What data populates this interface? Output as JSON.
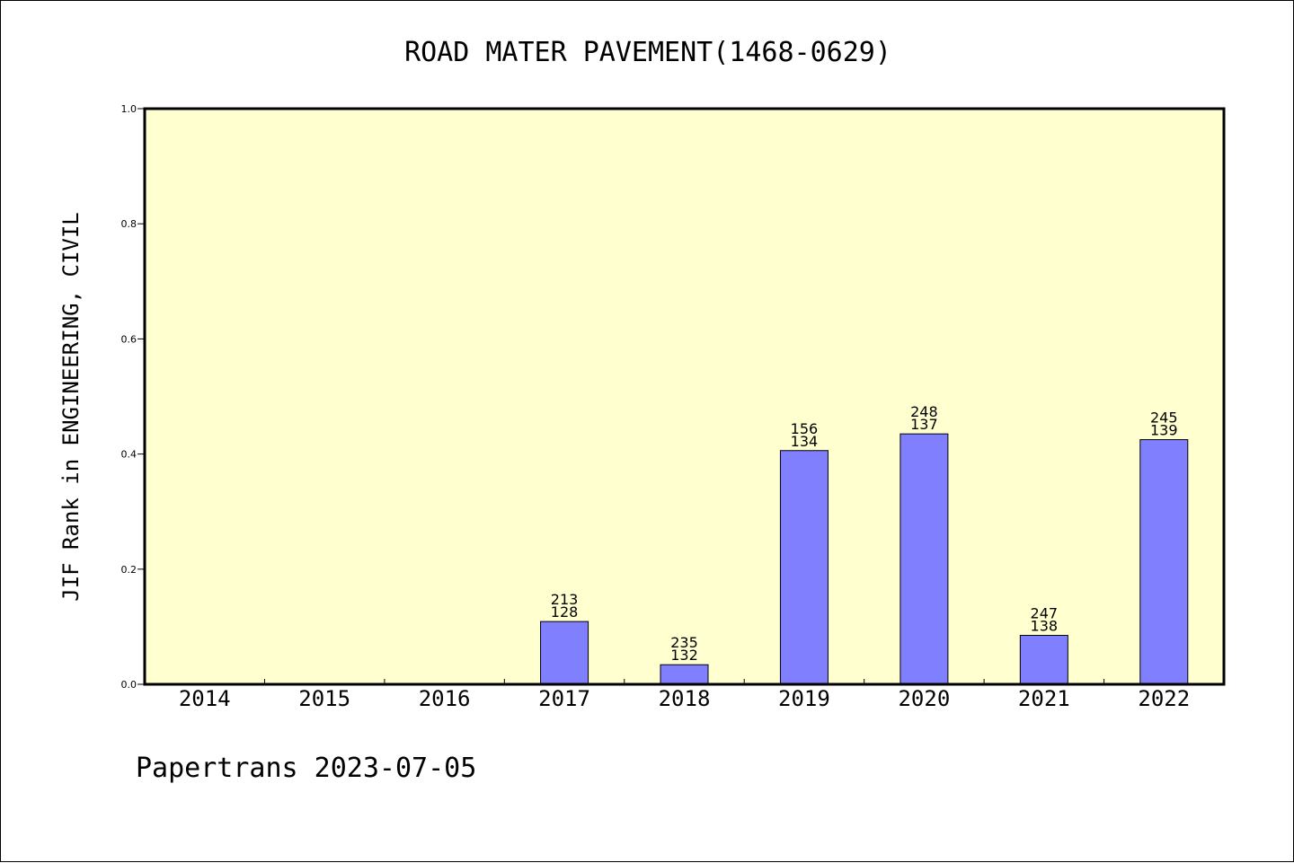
{
  "chart_data": {
    "type": "bar",
    "title": "ROAD MATER PAVEMENT(1468-0629)",
    "ylabel": "JIF Rank in ENGINEERING, CIVIL",
    "xlabel": "",
    "footer": "Papertrans 2023-07-05",
    "categories": [
      "2014",
      "2015",
      "2016",
      "2017",
      "2018",
      "2019",
      "2020",
      "2021",
      "2022"
    ],
    "values": [
      null,
      null,
      null,
      0.109,
      0.034,
      0.406,
      0.435,
      0.085,
      0.425
    ],
    "rank_labels": [
      null,
      null,
      null,
      "213\n128",
      "235\n132",
      "156\n134",
      "248\n137",
      "247\n138",
      "245\n139"
    ],
    "ylim": [
      0,
      1.0
    ],
    "yticks": [
      "0.0",
      "0.2",
      "0.4",
      "0.6",
      "0.8",
      "1.0"
    ],
    "grid": false,
    "colors": {
      "plot_background": "#ffffd0",
      "bar_fill": "#8080ff",
      "bar_stroke": "#000000",
      "axis": "#000000"
    }
  }
}
